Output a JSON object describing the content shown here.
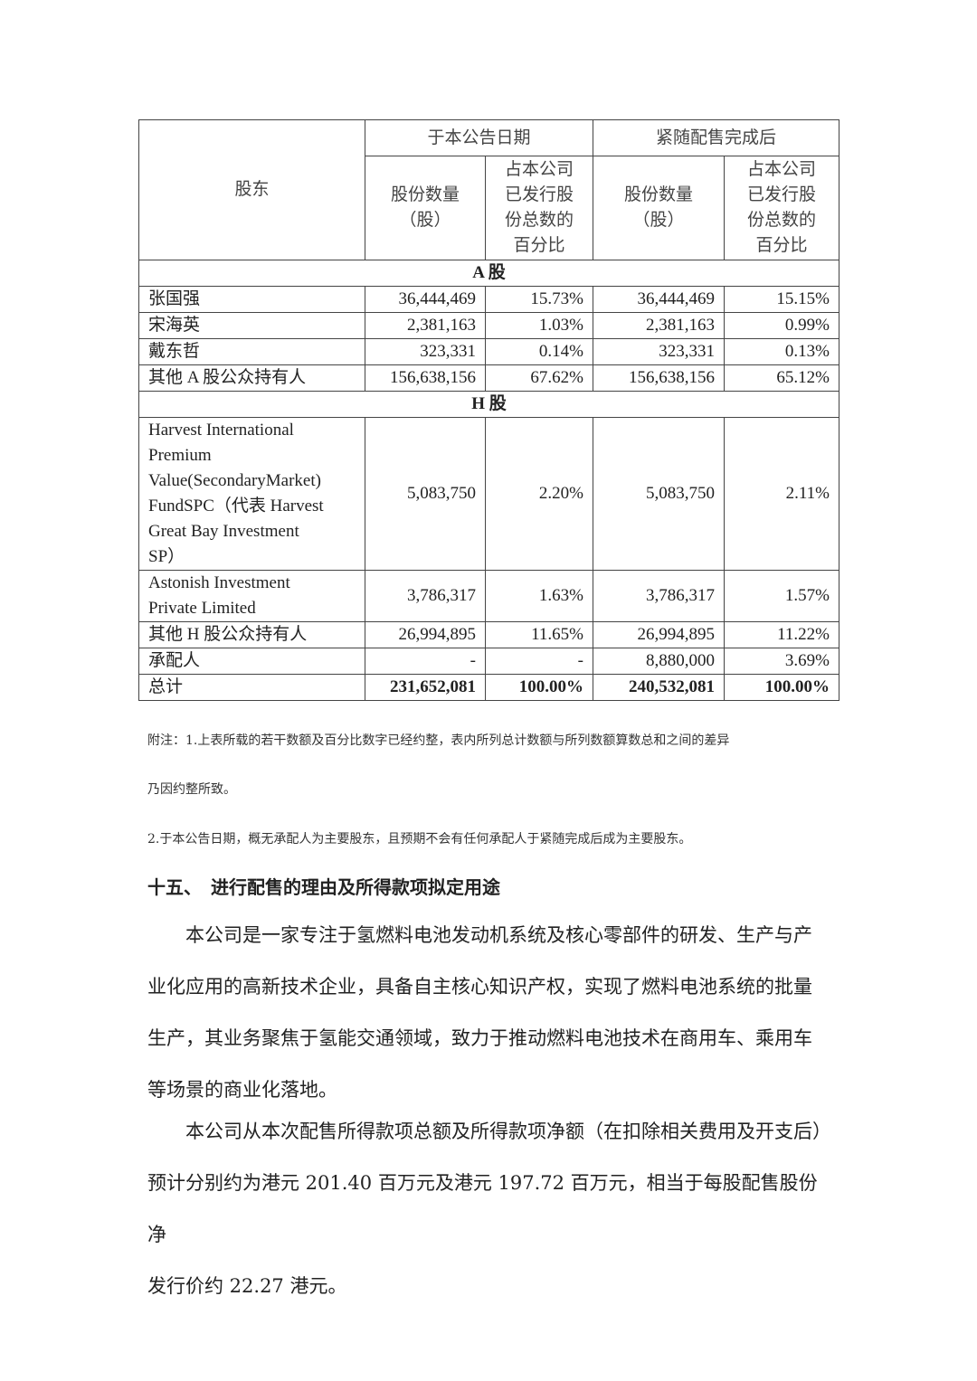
{
  "table": {
    "header": {
      "shareholder": "股东",
      "group1": "于本公告日期",
      "group2": "紧随配售完成后",
      "shares": [
        "股份数量",
        "（股）"
      ],
      "pct": [
        "占本公司",
        "已发行股",
        "份总数的",
        "百分比"
      ]
    },
    "section_a": "A 股",
    "section_h": "H 股",
    "rows_a": [
      {
        "name": "张国强",
        "s1": "36,444,469",
        "p1": "15.73%",
        "s2": "36,444,469",
        "p2": "15.15%"
      },
      {
        "name": "宋海英",
        "s1": "2,381,163",
        "p1": "1.03%",
        "s2": "2,381,163",
        "p2": "0.99%"
      },
      {
        "name": "戴东哲",
        "s1": "323,331",
        "p1": "0.14%",
        "s2": "323,331",
        "p2": "0.13%"
      },
      {
        "name": "其他 A 股公众持有人",
        "s1": "156,638,156",
        "p1": "67.62%",
        "s2": "156,638,156",
        "p2": "65.12%"
      }
    ],
    "rows_h": [
      {
        "name": [
          "Harvest International",
          "Premium",
          "Value(SecondaryMarket)",
          "FundSPC（代表 Harvest",
          "Great Bay Investment",
          "SP）"
        ],
        "s1": "5,083,750",
        "p1": "2.20%",
        "s2": "5,083,750",
        "p2": "2.11%"
      },
      {
        "name": [
          "Astonish Investment",
          "Private Limited"
        ],
        "s1": "3,786,317",
        "p1": "1.63%",
        "s2": "3,786,317",
        "p2": "1.57%"
      },
      {
        "name": [
          "其他 H 股公众持有人"
        ],
        "s1": "26,994,895",
        "p1": "11.65%",
        "s2": "26,994,895",
        "p2": "11.22%"
      },
      {
        "name": [
          "承配人"
        ],
        "s1": "-",
        "p1": "-",
        "s2": "8,880,000",
        "p2": "3.69%"
      }
    ],
    "total": {
      "name": "总计",
      "s1": "231,652,081",
      "p1": "100.00%",
      "s2": "240,532,081",
      "p2": "100.00%"
    }
  },
  "notes": {
    "n1a": "附注：1.上表所载的若干数额及百分比数字已经约整，表内所列总计数额与所列数额算数总和之间的差异",
    "n1b": "乃因约整所致。",
    "n2": "2.于本公告日期，概无承配人为主要股东，且预期不会有任何承配人于紧随完成后成为主要股东。"
  },
  "section15": {
    "heading": "十五、　进行配售的理由及所得款项拟定用途",
    "p1": [
      "　　本公司是一家专注于氢燃料电池发动机系统及核心零部件的研发、生产与产",
      "业化应用的高新技术企业，具备自主核心知识产权，实现了燃料电池系统的批量",
      "生产，其业务聚焦于氢能交通领域，致力于推动燃料电池技术在商用车、乘用车",
      "等场景的商业化落地。"
    ],
    "p2": [
      "　　本公司从本次配售所得款项总额及所得款项净额（在扣除相关费用及开支后）",
      "预计分别约为港元 201.40 百万元及港元 197.72 百万元，相当于每股配售股份净",
      "发行价约 22.27 港元。"
    ]
  }
}
